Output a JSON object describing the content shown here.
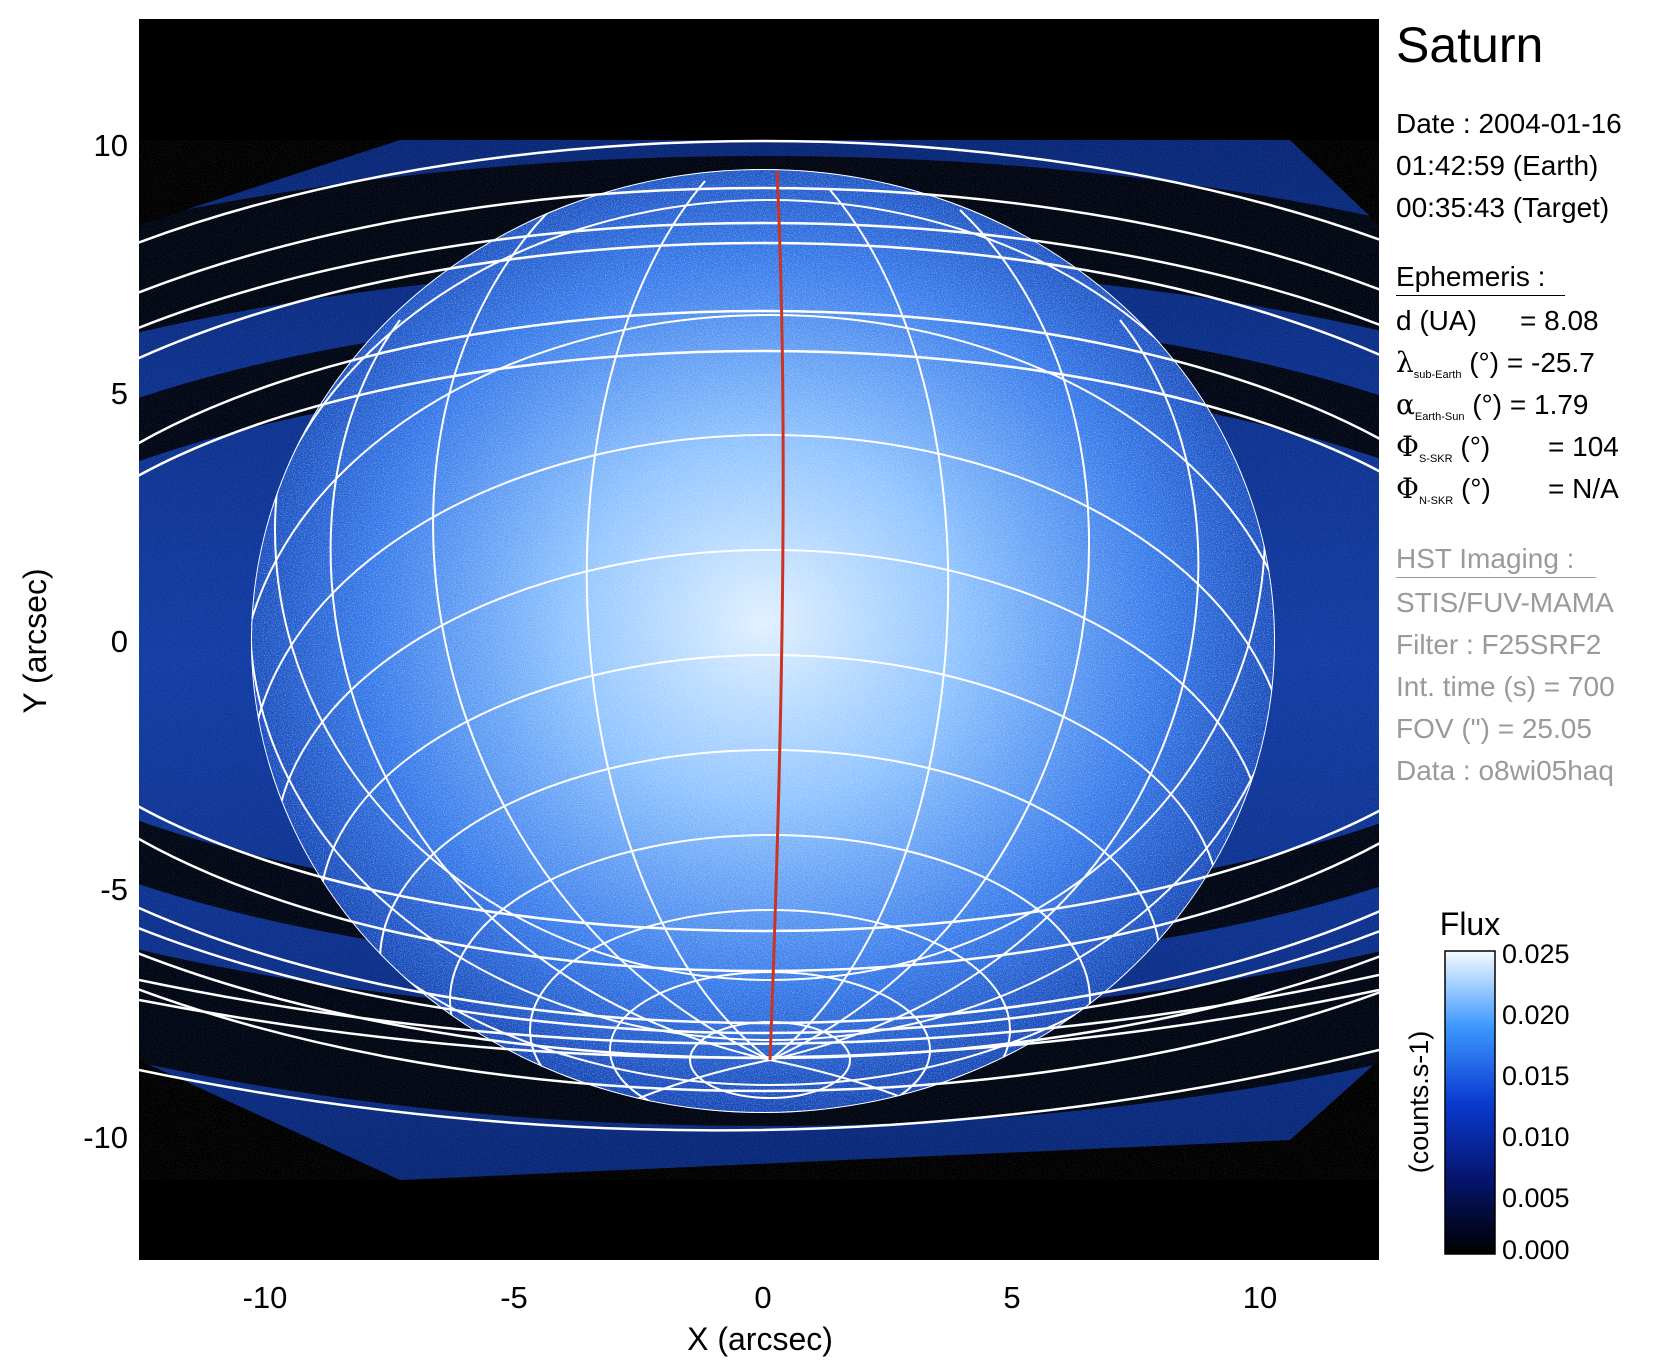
{
  "target": "Saturn",
  "observation": {
    "date_line": "Date : 2004-01-16",
    "earth_time": "01:42:59 (Earth)",
    "target_time": "00:35:43 (Target)"
  },
  "ephemeris": {
    "heading": "Ephemeris :",
    "rows": [
      {
        "symbol": "d",
        "sub": "",
        "label_tail": " (UA)",
        "value": "= 8.08"
      },
      {
        "symbol": "λ",
        "sub": "sub-Earth",
        "label_tail": " (°)",
        "value": "= -25.7"
      },
      {
        "symbol": "α",
        "sub": "Earth-Sun",
        "label_tail": " (°)",
        "value": "= 1.79"
      },
      {
        "symbol": "Φ",
        "sub": "S-SKR",
        "label_tail": " (°)",
        "value": "= 104"
      },
      {
        "symbol": "Φ",
        "sub": "N-SKR",
        "label_tail": " (°)",
        "value": "= N/A"
      }
    ]
  },
  "imaging": {
    "heading": "HST Imaging :",
    "instrument": "STIS/FUV-MAMA",
    "filter": "Filter : F25SRF2",
    "int_time": "Int. time (s) = 700",
    "fov": "FOV (\") = 25.05",
    "dataset": "Data : o8wi05haq"
  },
  "axes": {
    "xlabel": "X (arcsec)",
    "ylabel": "Y (arcsec)",
    "xlim": [
      -12.5,
      12.5
    ],
    "ylim": [
      -12.5,
      12.5
    ],
    "xticks": [
      -10,
      -5,
      0,
      5,
      10
    ],
    "yticks": [
      10,
      5,
      0,
      -5,
      -10
    ]
  },
  "colorbar": {
    "title": "Flux",
    "units_label": "(counts.s-1)",
    "ticks": [
      "0.025",
      "0.020",
      "0.015",
      "0.010",
      "0.005",
      "0.000"
    ],
    "range": [
      0.0,
      0.025
    ]
  },
  "colors": {
    "background": "#000000",
    "glow_core": "#cfe6ff",
    "glow_mid": "#4d9bff",
    "glow_edge": "#0b36b8",
    "grid": "#ffffff",
    "meridian": "#cc3322"
  }
}
